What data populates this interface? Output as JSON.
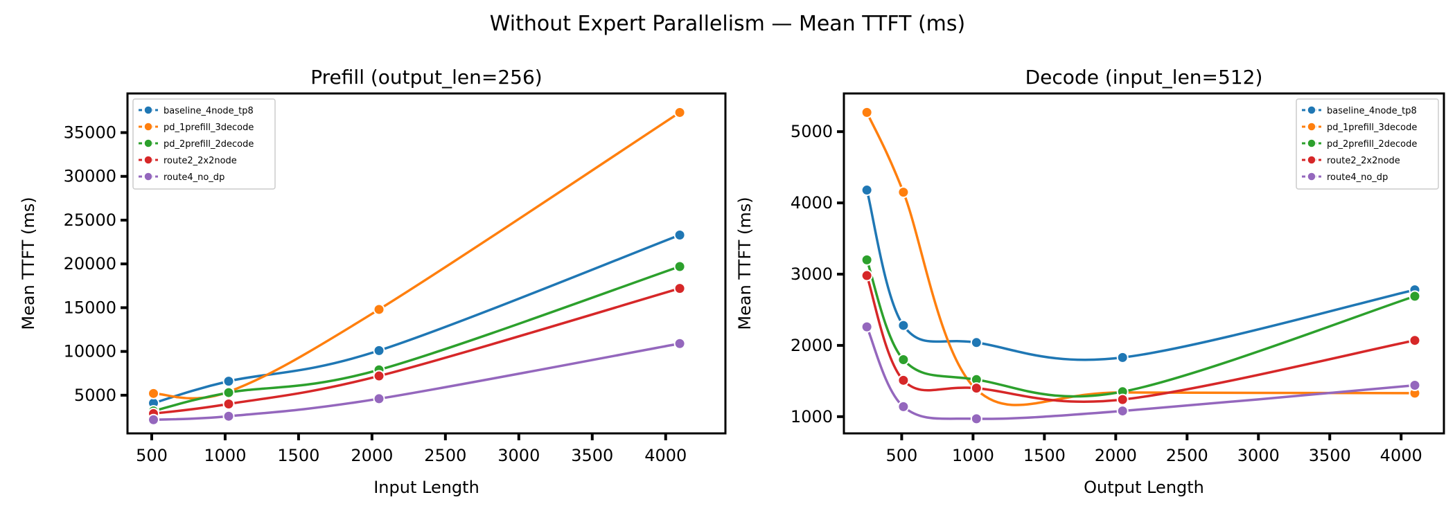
{
  "title": "Without Expert Parallelism — Mean TTFT (ms)",
  "colors": {
    "baseline_4node_tp8": "#1f77b4",
    "pd_1prefill_3decode": "#ff7f0e",
    "pd_2prefill_2decode": "#2ca02c",
    "route2_2x2node": "#d62728",
    "route4_no_dp": "#9467bd"
  },
  "chart_data": [
    {
      "type": "line",
      "title": "Prefill (output_len=256)",
      "xlabel": "Input Length",
      "ylabel": "Mean TTFT (ms)",
      "xlim": [
        335,
        4407
      ],
      "ylim": [
        640,
        39470
      ],
      "xticks": [
        500,
        1000,
        1500,
        2000,
        2500,
        3000,
        3500,
        4000
      ],
      "yticks": [
        5000,
        10000,
        15000,
        20000,
        25000,
        30000,
        35000
      ],
      "legend": "top-left",
      "grid": false,
      "x": [
        512,
        1024,
        2048,
        4096
      ],
      "series": [
        {
          "name": "baseline_4node_tp8",
          "values": [
            4100,
            6600,
            10100,
            23300
          ]
        },
        {
          "name": "pd_1prefill_3decode",
          "values": [
            5200,
            5400,
            14800,
            37300
          ]
        },
        {
          "name": "pd_2prefill_2decode",
          "values": [
            3200,
            5300,
            7900,
            19700
          ]
        },
        {
          "name": "route2_2x2node",
          "values": [
            2900,
            4000,
            7200,
            17200
          ]
        },
        {
          "name": "route4_no_dp",
          "values": [
            2200,
            2600,
            4600,
            10900
          ]
        }
      ]
    },
    {
      "type": "line",
      "title": "Decode (input_len=512)",
      "xlabel": "Output Length",
      "ylabel": "Mean TTFT (ms)",
      "xlim": [
        95,
        4300
      ],
      "ylim": [
        765,
        5536
      ],
      "xticks": [
        500,
        1000,
        1500,
        2000,
        2500,
        3000,
        3500,
        4000
      ],
      "yticks": [
        1000,
        2000,
        3000,
        4000,
        5000
      ],
      "legend": "top-right",
      "grid": false,
      "x": [
        256,
        512,
        1024,
        2048,
        4096
      ],
      "series": [
        {
          "name": "baseline_4node_tp8",
          "values": [
            4180,
            2280,
            2040,
            1830,
            2780
          ]
        },
        {
          "name": "pd_1prefill_3decode",
          "values": [
            5270,
            4150,
            1380,
            1340,
            1330
          ]
        },
        {
          "name": "pd_2prefill_2decode",
          "values": [
            3200,
            1800,
            1520,
            1350,
            2690
          ]
        },
        {
          "name": "route2_2x2node",
          "values": [
            2980,
            1510,
            1400,
            1240,
            2070
          ]
        },
        {
          "name": "route4_no_dp",
          "values": [
            2260,
            1140,
            970,
            1080,
            1440
          ]
        }
      ]
    }
  ]
}
